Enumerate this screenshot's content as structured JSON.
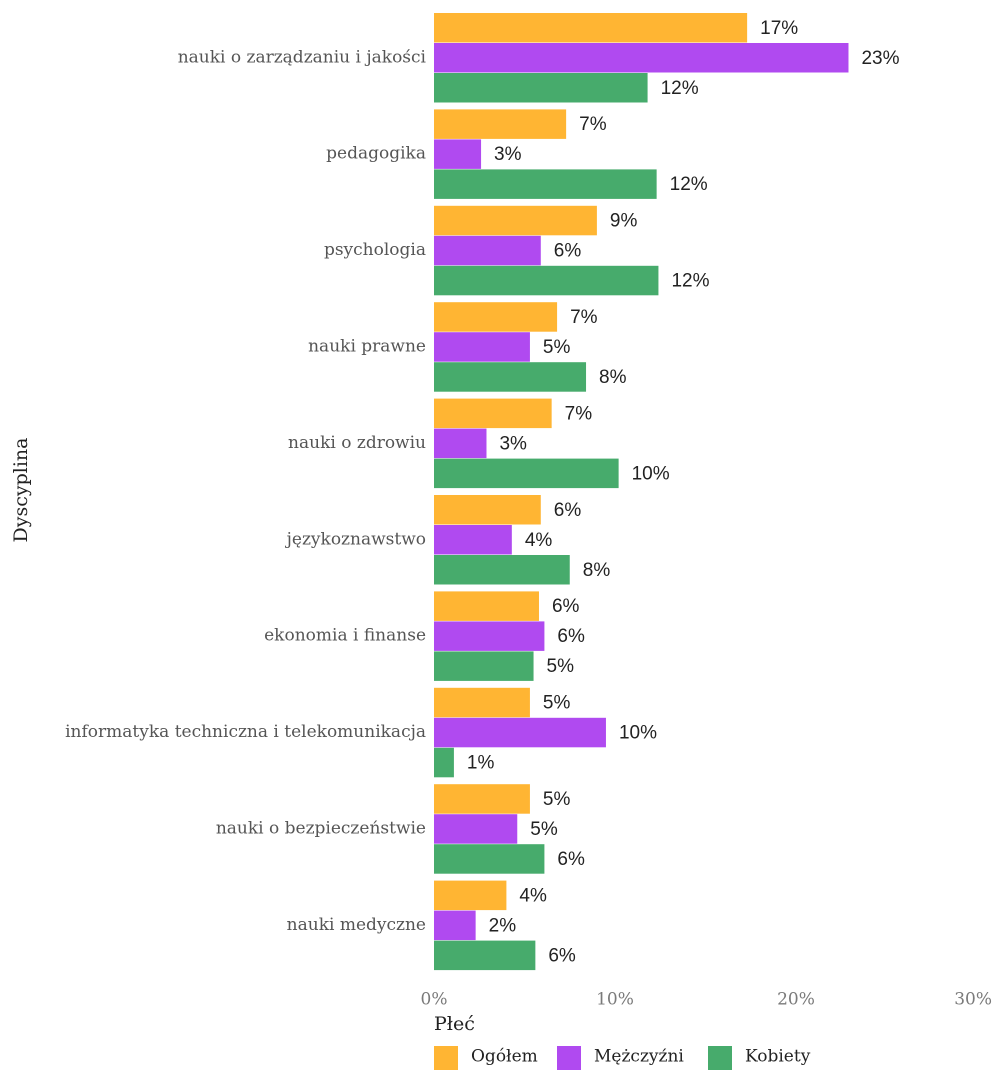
{
  "chart_data": {
    "type": "bar",
    "orientation": "horizontal",
    "categories": [
      "nauki o zarządzaniu i jakości",
      "pedagogika",
      "psychologia",
      "nauki prawne",
      "nauki o zdrowiu",
      "językoznawstwo",
      "ekonomia i finanse",
      "informatyka techniczna i telekomunikacja",
      "nauki o bezpieczeństwie",
      "nauki medyczne"
    ],
    "series": [
      {
        "name": "Ogółem",
        "color": "#FFB533",
        "values": [
          17.3,
          7.3,
          9.0,
          6.8,
          6.5,
          5.9,
          5.8,
          5.3,
          5.3,
          4.0
        ],
        "labels": [
          "17%",
          "7%",
          "9%",
          "7%",
          "7%",
          "6%",
          "6%",
          "5%",
          "5%",
          "4%"
        ]
      },
      {
        "name": "Mężczyźni",
        "color": "#B04AF0",
        "values": [
          22.9,
          2.6,
          5.9,
          5.3,
          2.9,
          4.3,
          6.1,
          9.5,
          4.6,
          2.3
        ],
        "labels": [
          "23%",
          "3%",
          "6%",
          "5%",
          "3%",
          "4%",
          "6%",
          "10%",
          "5%",
          "2%"
        ]
      },
      {
        "name": "Kobiety",
        "color": "#47AB6C",
        "values": [
          11.8,
          12.3,
          12.4,
          8.4,
          10.2,
          7.5,
          5.5,
          1.1,
          6.1,
          5.6
        ],
        "labels": [
          "12%",
          "12%",
          "12%",
          "8%",
          "10%",
          "8%",
          "5%",
          "1%",
          "6%",
          "6%"
        ]
      }
    ],
    "xlim": [
      0,
      30
    ],
    "x_ticks": [
      0,
      10,
      20,
      30
    ],
    "x_tick_labels": [
      "0%",
      "10%",
      "20%",
      "30%"
    ],
    "ylabel": "Dyscyplina",
    "xlabel": "",
    "legend_title": "Płeć",
    "legend_position": "bottom",
    "grid": false
  }
}
